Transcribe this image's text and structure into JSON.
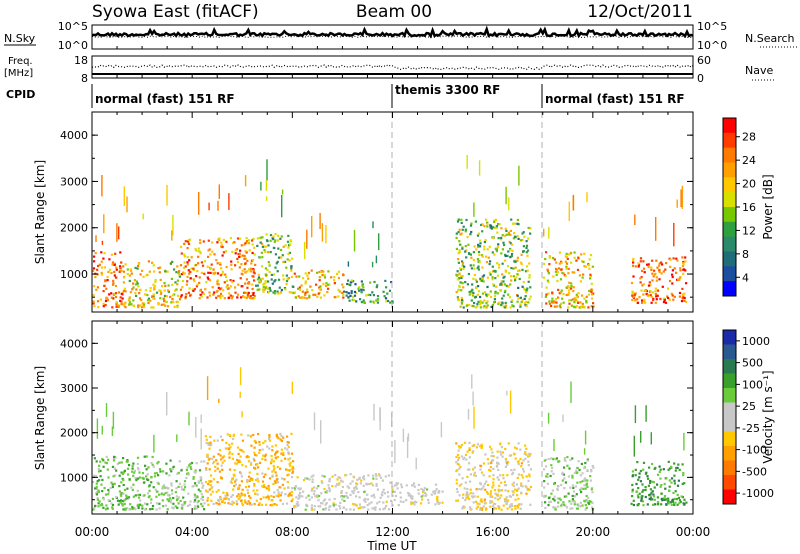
{
  "header": {
    "station": "Syowa East (fitACF)",
    "beam": "Beam 00",
    "date": "12/Oct/2011"
  },
  "top_panels": {
    "nsky_label": "N.Sky",
    "nsky_ticks": [
      "10^5",
      "10^0"
    ],
    "nsearch_label": "N.Search",
    "nsearch_ticks": [
      "10^5",
      "10^0"
    ],
    "freq_label": [
      "Freq.",
      "[MHz]"
    ],
    "freq_ticks": [
      "18",
      "8"
    ],
    "nave_label": "Nave",
    "nave_ticks": [
      "60",
      "0"
    ],
    "cpid_label": "CPID",
    "cpid_segments": [
      {
        "label": "normal (fast) 151 RF",
        "start_hour": 0,
        "end_hour": 12
      },
      {
        "label": "themis 3300 RF",
        "start_hour": 12,
        "end_hour": 18
      },
      {
        "label": "normal (fast) 151 RF",
        "start_hour": 18,
        "end_hour": 24
      }
    ]
  },
  "axes": {
    "xlabel": "Time UT",
    "x_ticks": [
      "00:00",
      "04:00",
      "08:00",
      "12:00",
      "16:00",
      "20:00",
      "00:00"
    ],
    "ylabel": "Slant Range [km]",
    "y_ticks": [
      "4000",
      "3000",
      "2000",
      "1000"
    ]
  },
  "power_colorbar": {
    "label": "Power [dB]",
    "ticks": [
      "28",
      "24",
      "20",
      "16",
      "12",
      "8",
      "4"
    ],
    "colors": [
      "#ff0000",
      "#ff3b00",
      "#ff7a00",
      "#ffa000",
      "#ffc800",
      "#d8e000",
      "#78c800",
      "#2ea040",
      "#2a8a6a",
      "#206c78",
      "#1c4ea0",
      "#0000ff"
    ]
  },
  "velocity_colorbar": {
    "label": "Velocity [m s⁻¹]",
    "ticks": [
      "1000",
      "500",
      "100",
      "25",
      "-25",
      "-100",
      "-500",
      "-1000"
    ],
    "colors": [
      "#1a2aa8",
      "#2a5890",
      "#2a7a50",
      "#3aa02c",
      "#6acc3a",
      "#c8c8c8",
      "#c8c8c8",
      "#ffc800",
      "#ffa000",
      "#ff7a00",
      "#ff4a00",
      "#ff0000"
    ]
  },
  "chart_data": [
    {
      "type": "heatmap",
      "title": "",
      "xlabel": "",
      "ylabel": "Slant Range [km]",
      "quantity": "Power [dB]",
      "xlim_hours": [
        0,
        24
      ],
      "ylim_km": [
        180,
        4500
      ],
      "zlim": [
        0,
        30
      ],
      "regions": [
        {
          "t0": 0.0,
          "t1": 1.2,
          "r0": 300,
          "r1": 1500,
          "value": 24
        },
        {
          "t0": 1.2,
          "t1": 3.5,
          "r0": 300,
          "r1": 1300,
          "value": 18
        },
        {
          "t0": 3.5,
          "t1": 6.5,
          "r0": 500,
          "r1": 1800,
          "value": 22
        },
        {
          "t0": 6.5,
          "t1": 8.0,
          "r0": 600,
          "r1": 1900,
          "value": 14
        },
        {
          "t0": 8.0,
          "t1": 10.0,
          "r0": 500,
          "r1": 1100,
          "value": 20
        },
        {
          "t0": 10.0,
          "t1": 12.0,
          "r0": 400,
          "r1": 900,
          "value": 10
        },
        {
          "t0": 14.5,
          "t1": 17.5,
          "r0": 300,
          "r1": 2200,
          "value": 14
        },
        {
          "t0": 18.0,
          "t1": 20.0,
          "r0": 300,
          "r1": 1500,
          "value": 20
        },
        {
          "t0": 21.5,
          "t1": 23.7,
          "r0": 400,
          "r1": 1400,
          "value": 24
        }
      ]
    },
    {
      "type": "heatmap",
      "title": "",
      "xlabel": "Time UT",
      "ylabel": "Slant Range [km]",
      "quantity": "Velocity [m s⁻¹]",
      "xlim_hours": [
        0,
        24
      ],
      "ylim_km": [
        180,
        4500
      ],
      "zlim": [
        -1000,
        1000
      ],
      "regions": [
        {
          "t0": 0.0,
          "t1": 2.5,
          "r0": 300,
          "r1": 1500,
          "value": 300
        },
        {
          "t0": 2.5,
          "t1": 4.5,
          "r0": 300,
          "r1": 1400,
          "value": 200
        },
        {
          "t0": 4.5,
          "t1": 8.0,
          "r0": 400,
          "r1": 2000,
          "value": -300
        },
        {
          "t0": 8.0,
          "t1": 12.0,
          "r0": 300,
          "r1": 1100,
          "value": 0
        },
        {
          "t0": 12.0,
          "t1": 14.0,
          "r0": 400,
          "r1": 900,
          "value": -10
        },
        {
          "t0": 14.5,
          "t1": 17.5,
          "r0": 300,
          "r1": 1800,
          "value": -150
        },
        {
          "t0": 18.0,
          "t1": 20.0,
          "r0": 300,
          "r1": 1500,
          "value": 200
        },
        {
          "t0": 21.5,
          "t1": 23.7,
          "r0": 400,
          "r1": 1400,
          "value": 400
        }
      ]
    }
  ]
}
